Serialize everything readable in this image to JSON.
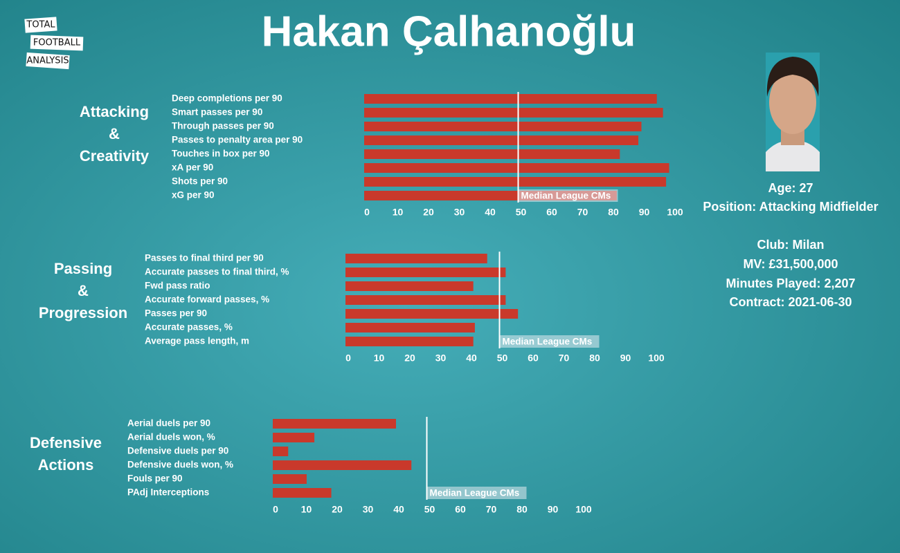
{
  "title": "Hakan Çalhanoğlu",
  "logo": [
    "TOTAL",
    "FOOTBALL",
    "ANALYSIS"
  ],
  "profile": [
    "Age: 27",
    "Position: Attacking Midfielder",
    "Club: Milan",
    "MV: £31,500,000",
    "Minutes Played: 2,207",
    "Contract: 2021-06-30"
  ],
  "chart_data": [
    {
      "type": "barh",
      "section": [
        "Attacking",
        "&",
        "Creativity"
      ],
      "categories": [
        "Deep completions per 90",
        "Smart passes per 90",
        "Through passes per 90",
        "Passes to penalty area per 90",
        "Touches in box per 90",
        "xA per 90",
        "Shots per 90",
        "xG per 90"
      ],
      "values": [
        95,
        97,
        90,
        89,
        83,
        99,
        98,
        82
      ],
      "color": "#c9392b",
      "xlim": [
        0,
        100
      ],
      "xticks": [
        0,
        10,
        20,
        30,
        40,
        50,
        60,
        70,
        80,
        90,
        100
      ],
      "median": 50,
      "median_label": "Median League CMs"
    },
    {
      "type": "barh",
      "section": [
        "Passing",
        "&",
        "Progression"
      ],
      "categories": [
        "Passes to final third per 90",
        "Accurate passes to final third, %",
        "Fwd pass ratio",
        "Accurate forward passes, %",
        "Passes per 90",
        "Accurate passes, %",
        "Average pass length, m"
      ],
      "values": [
        46,
        52,
        41.5,
        52,
        56,
        42,
        41.5
      ],
      "color": "#c9392b",
      "xlim": [
        0,
        100
      ],
      "xticks": [
        0,
        10,
        20,
        30,
        40,
        50,
        60,
        70,
        80,
        90,
        100
      ],
      "median": 50,
      "median_label": "Median League CMs"
    },
    {
      "type": "barh",
      "section": [
        "Defensive",
        "Actions"
      ],
      "categories": [
        "Aerial duels per 90",
        "Aerial duels won, %",
        "Defensive duels per 90",
        "Defensive duels won, %",
        "Fouls per 90",
        "PAdj Interceptions"
      ],
      "values": [
        40,
        13.5,
        5,
        45,
        11,
        19
      ],
      "color": "#c9392b",
      "xlim": [
        0,
        100
      ],
      "xticks": [
        0,
        10,
        20,
        30,
        40,
        50,
        60,
        70,
        80,
        90,
        100
      ],
      "median": 50,
      "median_label": "Median League CMs"
    }
  ]
}
